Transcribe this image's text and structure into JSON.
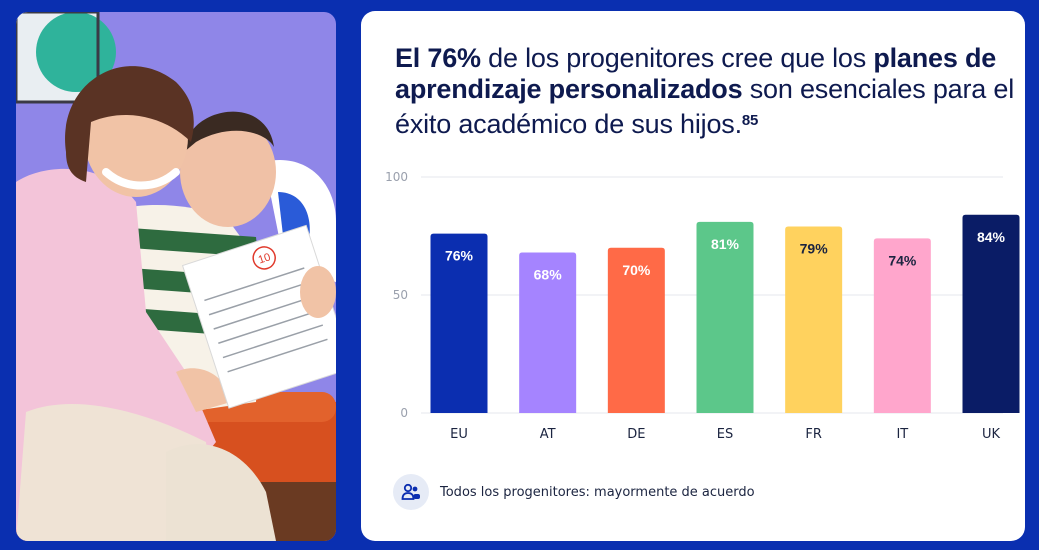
{
  "headline": {
    "part1": "El 76%",
    "part2": " de los progenitores cree que los ",
    "part3": "planes de aprendizaje personalizados",
    "part4": " son esenciales para el éxito académico de sus hijos.",
    "footnote": "85"
  },
  "photo": {
    "paper_mark": "10"
  },
  "chart_data": {
    "type": "bar",
    "categories": [
      "EU",
      "AT",
      "DE",
      "ES",
      "FR",
      "IT",
      "UK"
    ],
    "values": [
      76,
      68,
      70,
      81,
      79,
      74,
      84
    ],
    "value_labels": [
      "76%",
      "68%",
      "70%",
      "81%",
      "79%",
      "74%",
      "84%"
    ],
    "colors": [
      "#0b2eb0",
      "#a584ff",
      "#ff6a47",
      "#5cc78a",
      "#ffd25e",
      "#ffa6cc",
      "#0a1c66"
    ],
    "label_colors": [
      "#ffffff",
      "#ffffff",
      "#ffffff",
      "#ffffff",
      "#1b2440",
      "#1b2440",
      "#ffffff"
    ],
    "ylim": [
      0,
      100
    ],
    "yticks": [
      0,
      50,
      100
    ],
    "grid": true,
    "title": "",
    "xlabel": "",
    "ylabel": ""
  },
  "legend": {
    "icon": "people-icon",
    "label": "Todos los progenitores: mayormente de acuerdo"
  }
}
